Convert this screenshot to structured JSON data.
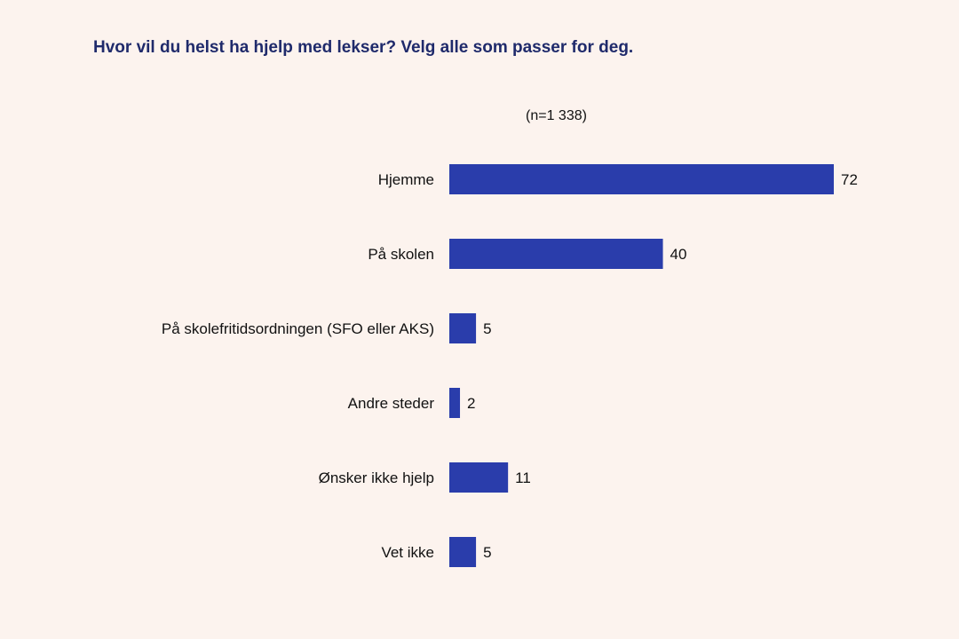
{
  "chart_data": {
    "type": "bar",
    "orientation": "horizontal",
    "title": "Hvor vil du helst ha hjelp med lekser? Velg alle som passer for deg.",
    "subtitle": "(n=1 338)",
    "categories": [
      "Hjemme",
      "På skolen",
      "På skolefritidsordningen (SFO eller AKS)",
      "Andre steder",
      "Ønsker ikke hjelp",
      "Vet ikke"
    ],
    "values": [
      72,
      40,
      5,
      2,
      11,
      5
    ],
    "data_labels": true,
    "grid": false,
    "bar_color": "#2a3dab",
    "title_color": "#1f2a6b",
    "background": "#fcf3ee"
  }
}
